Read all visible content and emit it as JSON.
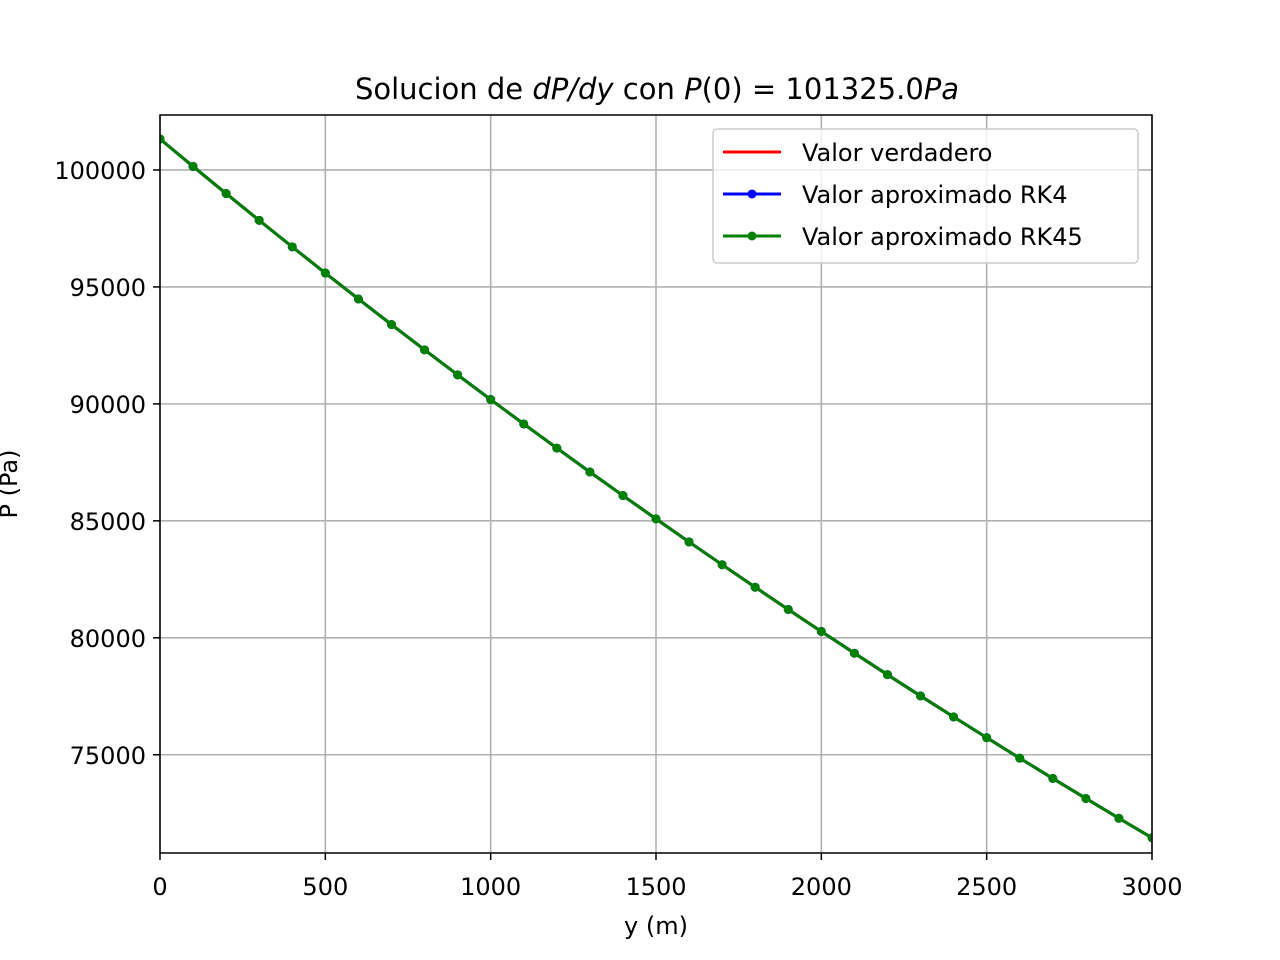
{
  "chart_data": {
    "type": "line",
    "title_parts": [
      "Solucion de ",
      "dP/dy",
      " con ",
      "P",
      "(0) = 101325.0",
      "Pa"
    ],
    "xlabel": "y (m)",
    "ylabel": "P (Pa)",
    "xlim": [
      0,
      3000
    ],
    "ylim": [
      70800,
      102350
    ],
    "xticks": [
      0,
      500,
      1000,
      1500,
      2000,
      2500,
      3000
    ],
    "yticks": [
      75000,
      80000,
      85000,
      90000,
      95000,
      100000
    ],
    "grid": true,
    "legend_position": "top-right",
    "x": [
      0,
      100,
      200,
      300,
      400,
      500,
      600,
      700,
      800,
      900,
      1000,
      1100,
      1200,
      1300,
      1400,
      1500,
      1600,
      1700,
      1800,
      1900,
      2000,
      2100,
      2200,
      2300,
      2400,
      2500,
      2600,
      2700,
      2800,
      2900,
      3000
    ],
    "series": [
      {
        "name": "Valor verdadero",
        "color": "#ff0000",
        "marker": false,
        "values": [
          101325,
          100152,
          98992,
          97846,
          96713,
          95593,
          94486,
          93392,
          92311,
          91242,
          90186,
          89142,
          88110,
          87089,
          86081,
          85084,
          84099,
          83125,
          82163,
          81211,
          80271,
          79342,
          78423,
          77515,
          76618,
          75731,
          74854,
          73988,
          73131,
          72285,
          71448
        ]
      },
      {
        "name": "Valor aproximado RK4",
        "color": "#0000ff",
        "marker": true,
        "values": [
          101325,
          100152,
          98992,
          97846,
          96713,
          95593,
          94486,
          93392,
          92311,
          91242,
          90186,
          89142,
          88110,
          87089,
          86081,
          85084,
          84099,
          83125,
          82163,
          81211,
          80271,
          79342,
          78423,
          77515,
          76618,
          75731,
          74854,
          73988,
          73131,
          72285,
          71448
        ]
      },
      {
        "name": "Valor aproximado RK45",
        "color": "#008000",
        "marker": true,
        "values": [
          101325,
          100152,
          98992,
          97846,
          96713,
          95593,
          94486,
          93392,
          92311,
          91242,
          90186,
          89142,
          88110,
          87089,
          86081,
          85084,
          84099,
          83125,
          82163,
          81211,
          80271,
          79342,
          78423,
          77515,
          76618,
          75731,
          74854,
          73988,
          73131,
          72285,
          71448
        ]
      }
    ]
  }
}
